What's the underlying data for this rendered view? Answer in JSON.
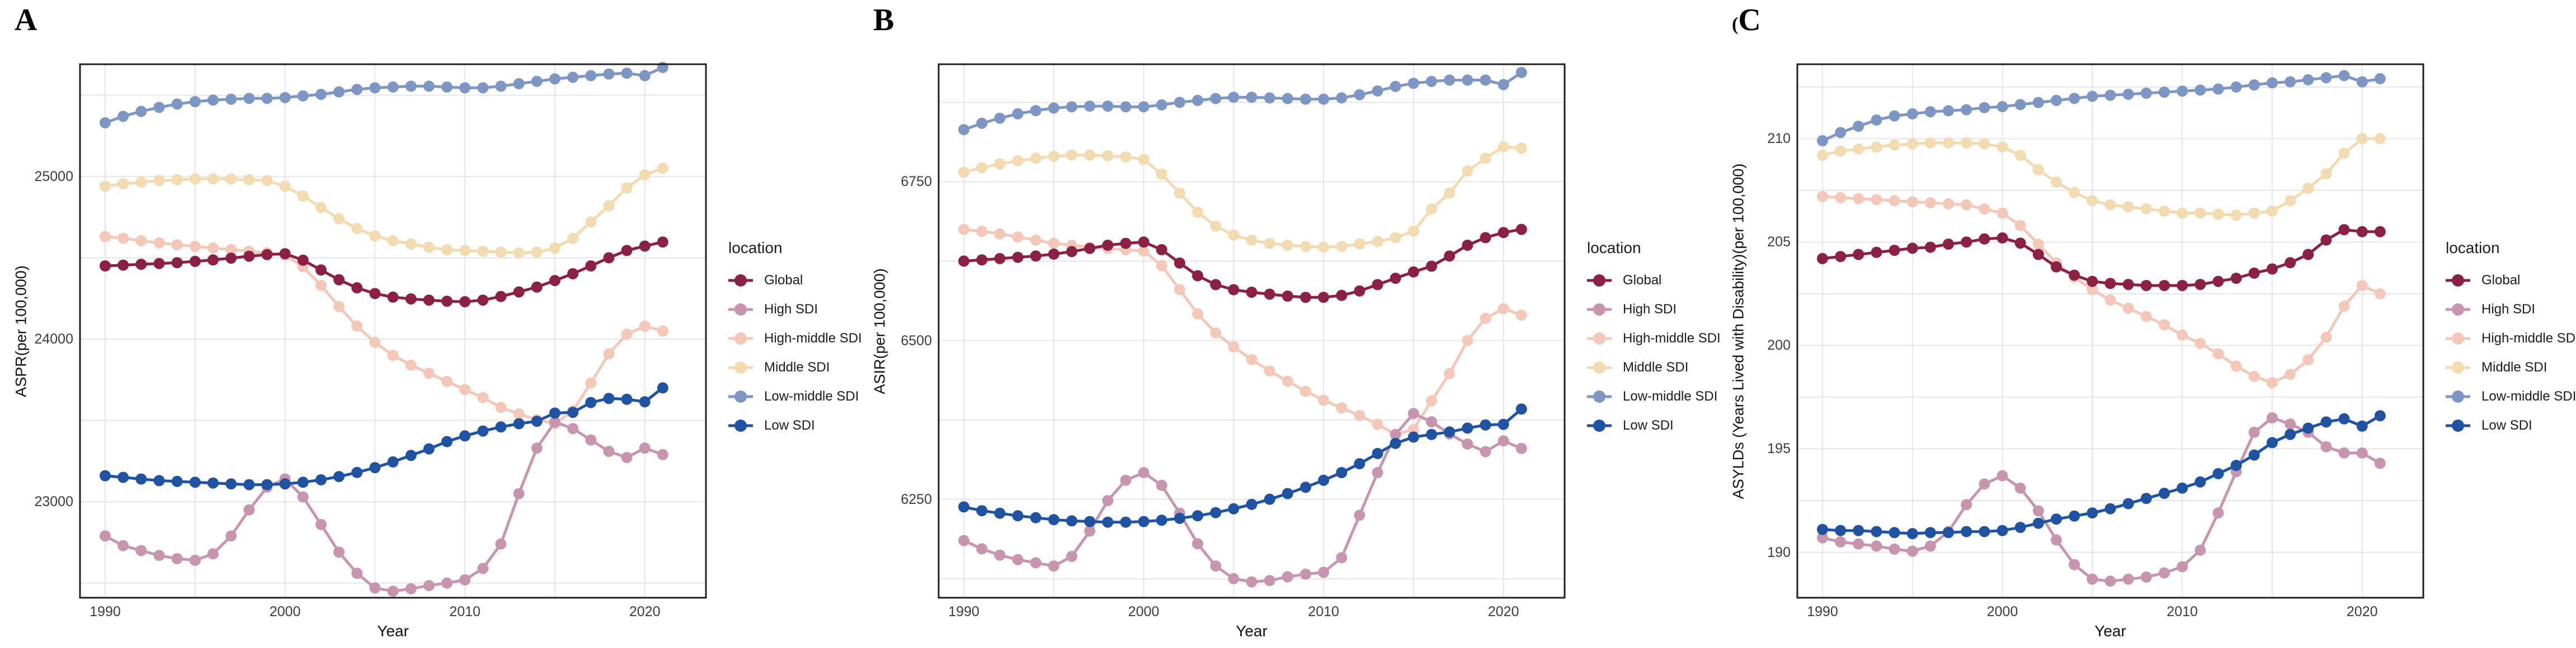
{
  "figure": {
    "legend_title": "location",
    "series_labels": [
      "Global",
      "High SDI",
      "High-middle SDI",
      "Middle SDI",
      "Low-middle SDI",
      "Low SDI"
    ],
    "colors": {
      "Global": "#8B2045",
      "High SDI": "#C795AE",
      "High-middle SDI": "#F4C8B8",
      "Middle SDI": "#F2DBB0",
      "Low-middle SDI": "#7D96C3",
      "Low SDI": "#2052A2"
    },
    "background": "#ffffff",
    "gridline_color": "#e5e5e5",
    "border_color": "#202020"
  },
  "chart_data": [
    {
      "type": "line",
      "panel_label": "A",
      "xlabel": "Year",
      "ylabel": "ASPR(per 100,000)",
      "x": [
        1990,
        1991,
        1992,
        1993,
        1994,
        1995,
        1996,
        1997,
        1998,
        1999,
        2000,
        2001,
        2002,
        2003,
        2004,
        2005,
        2006,
        2007,
        2008,
        2009,
        2010,
        2011,
        2012,
        2013,
        2014,
        2015,
        2016,
        2017,
        2018,
        2019,
        2020,
        2021
      ],
      "xticks": [
        1990,
        2000,
        2010,
        2020
      ],
      "xlim": [
        1988.6,
        2023.4
      ],
      "yticks": [
        23000,
        24000,
        25000
      ],
      "grid_y_step": 500,
      "grid_x_step": 5,
      "ylim": [
        22410,
        25690
      ],
      "grid": true,
      "legend_position": "right",
      "draw_order": [
        "High-middle SDI",
        "Middle SDI",
        "Low-middle SDI",
        "High SDI",
        "Global",
        "Low SDI"
      ],
      "series": [
        {
          "name": "Global",
          "color": "#8B2045",
          "values": [
            24450,
            24455,
            24460,
            24465,
            24470,
            24478,
            24487,
            24498,
            24510,
            24520,
            24525,
            24485,
            24425,
            24365,
            24315,
            24280,
            24258,
            24247,
            24240,
            24233,
            24230,
            24240,
            24262,
            24290,
            24320,
            24360,
            24402,
            24450,
            24500,
            24545,
            24572,
            24597
          ]
        },
        {
          "name": "High SDI",
          "color": "#C795AE",
          "values": [
            22790,
            22730,
            22700,
            22670,
            22650,
            22640,
            22680,
            22790,
            22950,
            23090,
            23140,
            23030,
            22860,
            22690,
            22560,
            22470,
            22450,
            22465,
            22485,
            22500,
            22520,
            22590,
            22740,
            23050,
            23330,
            23490,
            23450,
            23380,
            23310,
            23272,
            23330,
            23290
          ]
        },
        {
          "name": "High-middle SDI",
          "color": "#F4C8B8",
          "values": [
            24630,
            24620,
            24605,
            24592,
            24580,
            24570,
            24560,
            24550,
            24540,
            24530,
            24515,
            24445,
            24330,
            24200,
            24080,
            23980,
            23900,
            23840,
            23790,
            23740,
            23690,
            23640,
            23580,
            23540,
            23505,
            23480,
            23560,
            23730,
            23910,
            24030,
            24080,
            24050
          ]
        },
        {
          "name": "Middle SDI",
          "color": "#F2DBB0",
          "values": [
            24940,
            24955,
            24965,
            24975,
            24980,
            24985,
            24985,
            24985,
            24980,
            24975,
            24940,
            24880,
            24810,
            24740,
            24680,
            24635,
            24605,
            24585,
            24565,
            24550,
            24545,
            24540,
            24535,
            24530,
            24535,
            24560,
            24620,
            24720,
            24820,
            24930,
            25010,
            25050
          ]
        },
        {
          "name": "Low-middle SDI",
          "color": "#7D96C3",
          "values": [
            25330,
            25370,
            25400,
            25425,
            25445,
            25460,
            25470,
            25475,
            25480,
            25480,
            25485,
            25495,
            25505,
            25520,
            25535,
            25545,
            25550,
            25555,
            25555,
            25550,
            25545,
            25545,
            25555,
            25570,
            25585,
            25600,
            25610,
            25620,
            25630,
            25635,
            25620,
            25670
          ]
        },
        {
          "name": "Low SDI",
          "color": "#2052A2",
          "values": [
            23160,
            23150,
            23140,
            23130,
            23125,
            23120,
            23115,
            23110,
            23105,
            23105,
            23110,
            23120,
            23135,
            23155,
            23180,
            23210,
            23245,
            23285,
            23325,
            23370,
            23405,
            23435,
            23460,
            23480,
            23495,
            23545,
            23550,
            23610,
            23635,
            23630,
            23615,
            23700
          ]
        }
      ]
    },
    {
      "type": "line",
      "panel_label": "B",
      "xlabel": "Year",
      "ylabel": "ASIR(per 100,000)",
      "x": [
        1990,
        1991,
        1992,
        1993,
        1994,
        1995,
        1996,
        1997,
        1998,
        1999,
        2000,
        2001,
        2002,
        2003,
        2004,
        2005,
        2006,
        2007,
        2008,
        2009,
        2010,
        2011,
        2012,
        2013,
        2014,
        2015,
        2016,
        2017,
        2018,
        2019,
        2020,
        2021
      ],
      "xticks": [
        1990,
        2000,
        2010,
        2020
      ],
      "xlim": [
        1988.6,
        2023.4
      ],
      "yticks": [
        6250,
        6500,
        6750
      ],
      "grid_y_step": 125,
      "grid_x_step": 5,
      "ylim": [
        6095,
        6935
      ],
      "grid": true,
      "legend_position": "right",
      "draw_order": [
        "High-middle SDI",
        "Middle SDI",
        "Low-middle SDI",
        "High SDI",
        "Global",
        "Low SDI"
      ],
      "series": [
        {
          "name": "Global",
          "color": "#8B2045",
          "values": [
            6625,
            6627,
            6629,
            6631,
            6633,
            6636,
            6640,
            6645,
            6650,
            6653,
            6655,
            6643,
            6622,
            6602,
            6588,
            6580,
            6576,
            6573,
            6570,
            6568,
            6568,
            6571,
            6578,
            6588,
            6598,
            6608,
            6617,
            6633,
            6650,
            6662,
            6670,
            6675
          ]
        },
        {
          "name": "High SDI",
          "color": "#C795AE",
          "values": [
            6185,
            6172,
            6162,
            6155,
            6150,
            6145,
            6160,
            6200,
            6248,
            6280,
            6292,
            6272,
            6228,
            6180,
            6145,
            6125,
            6120,
            6122,
            6128,
            6132,
            6135,
            6158,
            6225,
            6292,
            6352,
            6385,
            6372,
            6353,
            6337,
            6325,
            6342,
            6330
          ]
        },
        {
          "name": "High-middle SDI",
          "color": "#F4C8B8",
          "values": [
            6675,
            6672,
            6668,
            6663,
            6658,
            6653,
            6650,
            6647,
            6645,
            6643,
            6641,
            6618,
            6580,
            6542,
            6512,
            6490,
            6470,
            6452,
            6436,
            6420,
            6406,
            6394,
            6382,
            6368,
            6352,
            6360,
            6405,
            6448,
            6500,
            6535,
            6550,
            6540
          ]
        },
        {
          "name": "Middle SDI",
          "color": "#F2DBB0",
          "values": [
            6765,
            6772,
            6778,
            6783,
            6787,
            6790,
            6792,
            6792,
            6791,
            6789,
            6785,
            6762,
            6732,
            6702,
            6680,
            6666,
            6658,
            6653,
            6650,
            6648,
            6647,
            6648,
            6652,
            6656,
            6662,
            6672,
            6707,
            6732,
            6767,
            6787,
            6805,
            6803
          ]
        },
        {
          "name": "Low-middle SDI",
          "color": "#7D96C3",
          "values": [
            6832,
            6842,
            6850,
            6857,
            6862,
            6866,
            6868,
            6869,
            6869,
            6868,
            6868,
            6871,
            6875,
            6878,
            6881,
            6883,
            6883,
            6882,
            6881,
            6880,
            6880,
            6882,
            6887,
            6893,
            6900,
            6905,
            6908,
            6910,
            6910,
            6910,
            6903,
            6922
          ]
        },
        {
          "name": "Low SDI",
          "color": "#2052A2",
          "values": [
            6238,
            6232,
            6228,
            6224,
            6221,
            6218,
            6216,
            6215,
            6214,
            6214,
            6215,
            6217,
            6220,
            6224,
            6229,
            6235,
            6242,
            6250,
            6259,
            6269,
            6280,
            6292,
            6306,
            6322,
            6338,
            6348,
            6352,
            6356,
            6362,
            6367,
            6368,
            6392
          ]
        }
      ]
    },
    {
      "type": "line",
      "panel_label": "C",
      "panel_label_prefix": "(",
      "xlabel": "Year",
      "ylabel": "ASYLDs (Years Lived with Disability)(per 100,000)",
      "x": [
        1990,
        1991,
        1992,
        1993,
        1994,
        1995,
        1996,
        1997,
        1998,
        1999,
        2000,
        2001,
        2002,
        2003,
        2004,
        2005,
        2006,
        2007,
        2008,
        2009,
        2010,
        2011,
        2012,
        2013,
        2014,
        2015,
        2016,
        2017,
        2018,
        2019,
        2020,
        2021
      ],
      "xticks": [
        1990,
        2000,
        2010,
        2020
      ],
      "xlim": [
        1988.6,
        2023.4
      ],
      "yticks": [
        190,
        195,
        200,
        205,
        210
      ],
      "grid_y_step": 2.5,
      "grid_x_step": 5,
      "ylim": [
        187.8,
        213.6
      ],
      "grid": true,
      "legend_position": "right",
      "draw_order": [
        "High-middle SDI",
        "Middle SDI",
        "Low-middle SDI",
        "High SDI",
        "Global",
        "Low SDI"
      ],
      "series": [
        {
          "name": "Global",
          "color": "#8B2045",
          "values": [
            204.2,
            204.3,
            204.4,
            204.5,
            204.6,
            204.7,
            204.75,
            204.9,
            205.0,
            205.15,
            205.2,
            204.95,
            204.4,
            203.8,
            203.4,
            203.1,
            203.0,
            202.95,
            202.9,
            202.9,
            202.9,
            202.95,
            203.1,
            203.25,
            203.5,
            203.7,
            204.0,
            204.4,
            205.1,
            205.6,
            205.5,
            205.5
          ]
        },
        {
          "name": "High SDI",
          "color": "#C795AE",
          "values": [
            190.7,
            190.5,
            190.4,
            190.3,
            190.15,
            190.05,
            190.3,
            191.0,
            192.3,
            193.3,
            193.7,
            193.1,
            192.0,
            190.6,
            189.4,
            188.7,
            188.6,
            188.7,
            188.8,
            189.0,
            189.3,
            190.1,
            191.9,
            193.9,
            195.8,
            196.5,
            196.2,
            195.8,
            195.1,
            194.8,
            194.8,
            194.3
          ]
        },
        {
          "name": "High-middle SDI",
          "color": "#F4C8B8",
          "values": [
            207.2,
            207.15,
            207.1,
            207.05,
            207.0,
            206.95,
            206.9,
            206.85,
            206.8,
            206.6,
            206.4,
            205.8,
            204.9,
            204.0,
            203.3,
            202.7,
            202.2,
            201.8,
            201.4,
            201.0,
            200.5,
            200.1,
            199.6,
            199.0,
            198.5,
            198.2,
            198.6,
            199.3,
            200.4,
            201.9,
            202.9,
            202.5
          ]
        },
        {
          "name": "Middle SDI",
          "color": "#F2DBB0",
          "values": [
            209.2,
            209.4,
            209.5,
            209.6,
            209.7,
            209.75,
            209.8,
            209.8,
            209.8,
            209.75,
            209.6,
            209.2,
            208.5,
            207.9,
            207.4,
            207.0,
            206.8,
            206.7,
            206.6,
            206.5,
            206.4,
            206.4,
            206.35,
            206.3,
            206.4,
            206.5,
            207.0,
            207.6,
            208.3,
            209.3,
            210.0,
            210.0
          ]
        },
        {
          "name": "Low-middle SDI",
          "color": "#7D96C3",
          "values": [
            209.9,
            210.3,
            210.6,
            210.9,
            211.1,
            211.2,
            211.3,
            211.35,
            211.4,
            211.5,
            211.55,
            211.65,
            211.75,
            211.85,
            211.95,
            212.05,
            212.1,
            212.15,
            212.2,
            212.25,
            212.3,
            212.35,
            212.4,
            212.5,
            212.6,
            212.7,
            212.75,
            212.85,
            212.95,
            213.05,
            212.75,
            212.9
          ]
        },
        {
          "name": "Low SDI",
          "color": "#2052A2",
          "values": [
            191.1,
            191.05,
            191.05,
            191.0,
            190.95,
            190.9,
            190.95,
            190.95,
            191.0,
            191.0,
            191.05,
            191.2,
            191.4,
            191.6,
            191.75,
            191.9,
            192.1,
            192.35,
            192.6,
            192.85,
            193.1,
            193.4,
            193.8,
            194.2,
            194.7,
            195.3,
            195.7,
            196.0,
            196.3,
            196.45,
            196.1,
            196.6
          ]
        }
      ]
    }
  ]
}
